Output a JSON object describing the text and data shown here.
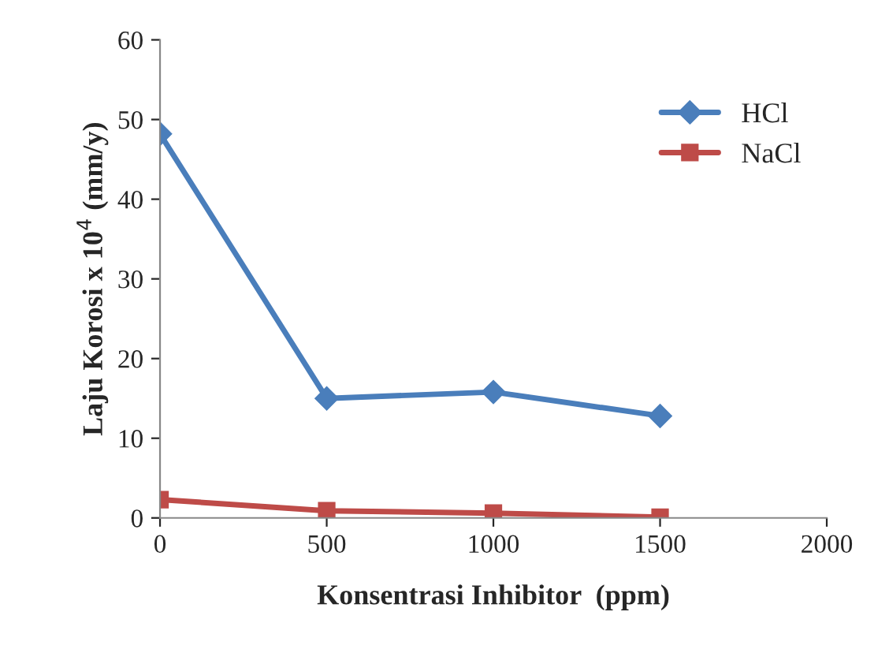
{
  "chart_data": {
    "type": "line",
    "xlabel": "Konsentrasi Inhibitor  (ppm)",
    "ylabel": "Laju Korosi x 10$^{4}$ (mm/y)",
    "x": [
      0,
      500,
      1000,
      1500
    ],
    "series": [
      {
        "name": "HCl",
        "color": "#4a7ebb",
        "marker": "diamond",
        "values": [
          48.2,
          15,
          15.8,
          12.8
        ]
      },
      {
        "name": "NaCl",
        "color": "#be4b48",
        "marker": "square",
        "values": [
          2.3,
          0.9,
          0.6,
          0.1
        ]
      }
    ],
    "xlim": [
      0,
      2000
    ],
    "xticks": [
      0,
      500,
      1000,
      1500,
      2000
    ],
    "ylim": [
      0,
      60
    ],
    "yticks": [
      0,
      10,
      20,
      30,
      40,
      50,
      60
    ],
    "grid": false,
    "legend": "right",
    "line_style": "solid"
  }
}
